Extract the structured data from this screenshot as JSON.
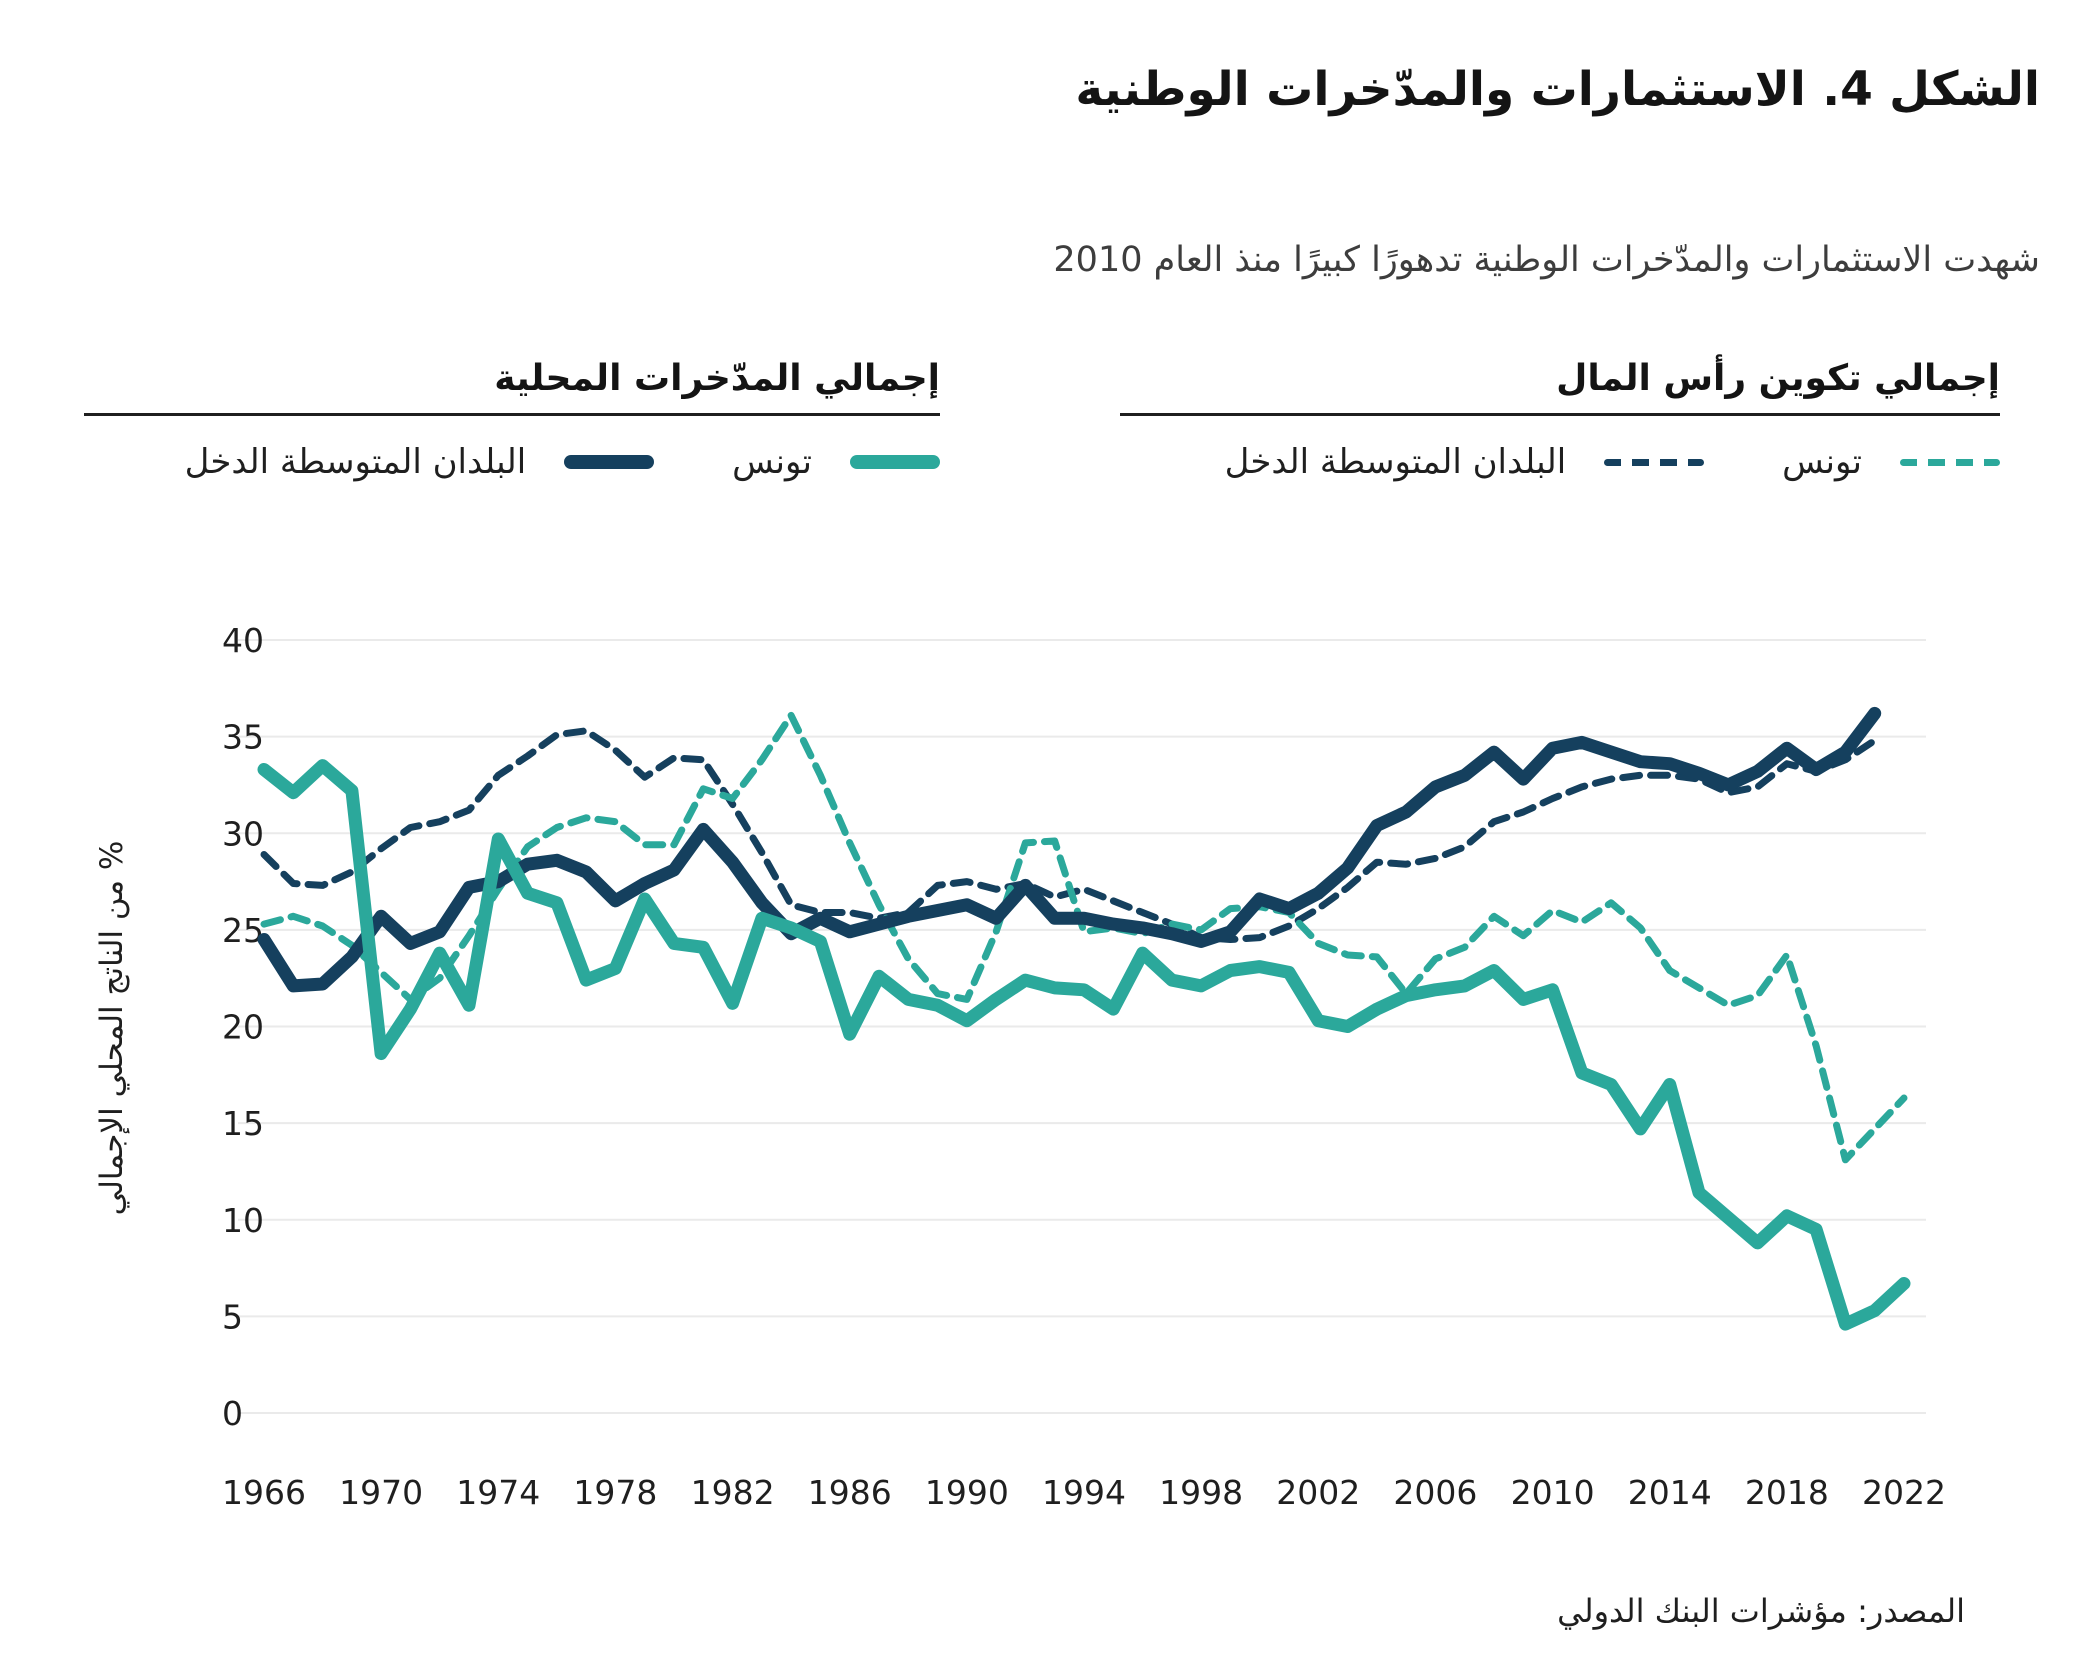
{
  "title": "الشكل 4. الاستثمارات والمدّخرات الوطنية",
  "subtitle": "شهدت الاستثمارات والمدّخرات الوطنية تدهورًا كبيرًا منذ العام 2010",
  "source": "المصدر: مؤشرات البنك الدولي",
  "colors": {
    "navy": "#15405E",
    "teal": "#2BA89B",
    "grid": "#EAEAEA",
    "text": "#1F1F1F"
  },
  "legend": {
    "groups": [
      {
        "title": "إجمالي تكوين رأس المال",
        "items": [
          {
            "label": "تونس",
            "style": "dashed",
            "color": "teal"
          },
          {
            "label": "البلدان المتوسطة الدخل",
            "style": "dashed",
            "color": "navy"
          }
        ]
      },
      {
        "title": "إجمالي المدّخرات المحلية",
        "items": [
          {
            "label": "تونس",
            "style": "solid",
            "color": "teal"
          },
          {
            "label": "البلدان المتوسطة الدخل",
            "style": "solid",
            "color": "navy"
          }
        ]
      }
    ]
  },
  "chart_data": {
    "type": "line",
    "title": "الشكل 4. الاستثمارات والمدّخرات الوطنية",
    "xlabel": "",
    "ylabel": "% من الناتج المحلي الإجمالي",
    "ylim": [
      0,
      40
    ],
    "y_ticks": [
      0,
      5,
      10,
      15,
      20,
      25,
      30,
      35,
      40
    ],
    "x_ticks": [
      1966,
      1970,
      1974,
      1978,
      1982,
      1986,
      1990,
      1994,
      1998,
      2002,
      2006,
      2010,
      2014,
      2018,
      2022
    ],
    "grid": "horizontal",
    "legend_position": "top",
    "series": [
      {
        "id": "gcf-middle-income",
        "name": "إجمالي تكوين رأس المال — البلدان المتوسطة الدخل",
        "color": "navy",
        "style": "dashed",
        "start_year": 1966,
        "values": [
          28.9,
          27.4,
          27.3,
          28.0,
          29.2,
          30.3,
          30.6,
          31.2,
          33.0,
          34.0,
          35.1,
          35.3,
          34.3,
          32.9,
          33.9,
          33.8,
          31.5,
          29.0,
          26.3,
          25.9,
          25.9,
          25.6,
          25.9,
          27.3,
          27.5,
          27.1,
          27.4,
          26.7,
          27.1,
          26.5,
          25.9,
          25.3,
          24.6,
          24.5,
          24.6,
          25.2,
          26.1,
          27.2,
          28.5,
          28.4,
          28.7,
          29.3,
          30.6,
          31.1,
          31.8,
          32.4,
          32.8,
          33.0,
          33.0,
          32.8,
          32.1,
          32.4,
          33.6,
          33.2,
          33.8,
          34.8
        ]
      },
      {
        "id": "gcf-tunisia",
        "name": "إجمالي تكوين رأس المال — تونس",
        "color": "teal",
        "style": "dashed",
        "start_year": 1966,
        "values": [
          25.3,
          25.7,
          25.2,
          24.2,
          22.8,
          21.4,
          22.5,
          24.7,
          27.1,
          29.3,
          30.3,
          30.8,
          30.6,
          29.4,
          29.4,
          32.3,
          31.8,
          33.8,
          36.1,
          33.0,
          29.5,
          26.3,
          23.5,
          21.7,
          21.4,
          24.9,
          29.5,
          29.6,
          24.9,
          25.1,
          24.8,
          25.3,
          25.0,
          26.1,
          26.2,
          25.9,
          24.3,
          23.7,
          23.6,
          21.7,
          23.5,
          24.1,
          25.7,
          24.7,
          26.0,
          25.4,
          26.4,
          25.1,
          22.9,
          22.0,
          21.1,
          21.6,
          23.7,
          19.0,
          13.1,
          14.7,
          16.3
        ]
      },
      {
        "id": "gds-middle-income",
        "name": "إجمالي المدّخرات المحلية — البلدان المتوسطة الدخل",
        "color": "navy",
        "style": "solid",
        "start_year": 1966,
        "values": [
          24.5,
          22.1,
          22.2,
          23.6,
          25.7,
          24.3,
          24.9,
          27.2,
          27.5,
          28.4,
          28.6,
          28.0,
          26.5,
          27.4,
          28.1,
          30.2,
          28.5,
          26.4,
          24.8,
          25.6,
          24.9,
          25.3,
          25.7,
          26.0,
          26.3,
          25.6,
          27.3,
          25.6,
          25.6,
          25.3,
          25.1,
          24.8,
          24.4,
          24.9,
          26.6,
          26.1,
          26.9,
          28.2,
          30.4,
          31.1,
          32.4,
          33.0,
          34.2,
          32.8,
          34.4,
          34.7,
          34.2,
          33.7,
          33.6,
          33.1,
          32.5,
          33.2,
          34.4,
          33.3,
          34.2,
          36.2
        ]
      },
      {
        "id": "gds-tunisia",
        "name": "إجمالي المدّخرات المحلية — تونس",
        "color": "teal",
        "style": "solid",
        "start_year": 1966,
        "values": [
          33.3,
          32.1,
          33.5,
          32.2,
          18.6,
          20.9,
          23.8,
          21.1,
          29.7,
          26.9,
          26.4,
          22.4,
          23.0,
          26.6,
          24.3,
          24.1,
          21.2,
          25.6,
          25.1,
          24.4,
          19.6,
          22.6,
          21.4,
          21.1,
          20.3,
          21.4,
          22.4,
          22.0,
          21.9,
          20.9,
          23.8,
          22.4,
          22.1,
          22.9,
          23.1,
          22.8,
          20.3,
          20.0,
          20.9,
          21.6,
          21.9,
          22.1,
          22.9,
          21.4,
          21.9,
          17.6,
          17.0,
          14.7,
          17.0,
          11.4,
          10.1,
          8.8,
          10.2,
          9.5,
          4.6,
          5.3,
          6.7
        ]
      }
    ]
  }
}
